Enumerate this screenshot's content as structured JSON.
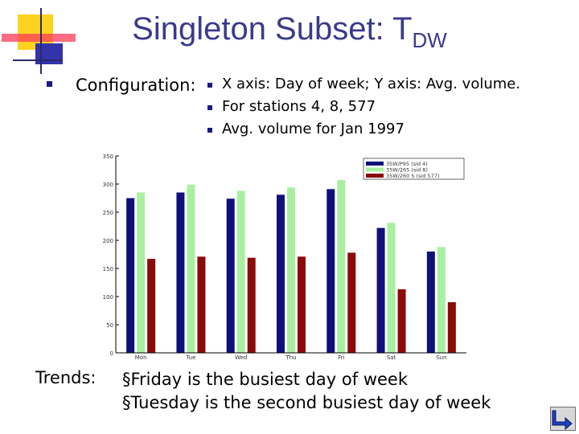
{
  "slide": {
    "title_main": "Singleton Subset: T",
    "title_sub": "DW",
    "config_label": "Configuration:",
    "config_items": [
      "X axis: Day of week; Y axis: Avg. volume.",
      "For stations 4, 8, 577",
      "Avg. volume for Jan 1997"
    ],
    "trends_label": "Trends:",
    "trends": [
      "§Friday is the busiest day of week",
      "§Tuesday is the second busiest day of week"
    ],
    "colors": {
      "title": "#3a3a8c",
      "bullet": "#1a1a80",
      "deco_yellow": "#ffd21f",
      "deco_red": "#ff3a5a",
      "deco_blue": "#3333aa"
    },
    "nav_icon": "return-arrow-icon"
  },
  "chart_data": {
    "type": "bar",
    "categories": [
      "Mon",
      "Tue",
      "Wed",
      "Thu",
      "Fri",
      "Sat",
      "Sun"
    ],
    "series": [
      {
        "name": "35W/P95 (sid 4)",
        "color": "#10107a",
        "values": [
          275,
          285,
          274,
          281,
          291,
          222,
          180
        ]
      },
      {
        "name": "35W/265 (sid 8)",
        "color": "#a8f0a0",
        "values": [
          285,
          299,
          288,
          294,
          307,
          231,
          188
        ]
      },
      {
        "name": "35W/260 S (sid 577)",
        "color": "#8b0a0a",
        "values": [
          167,
          171,
          169,
          171,
          178,
          113,
          90
        ]
      }
    ],
    "ylim": [
      0,
      350
    ],
    "yticks": [
      0,
      50,
      100,
      150,
      200,
      250,
      300,
      350
    ],
    "xlabel": "",
    "ylabel": "",
    "legend": "top-right",
    "grid": false
  }
}
